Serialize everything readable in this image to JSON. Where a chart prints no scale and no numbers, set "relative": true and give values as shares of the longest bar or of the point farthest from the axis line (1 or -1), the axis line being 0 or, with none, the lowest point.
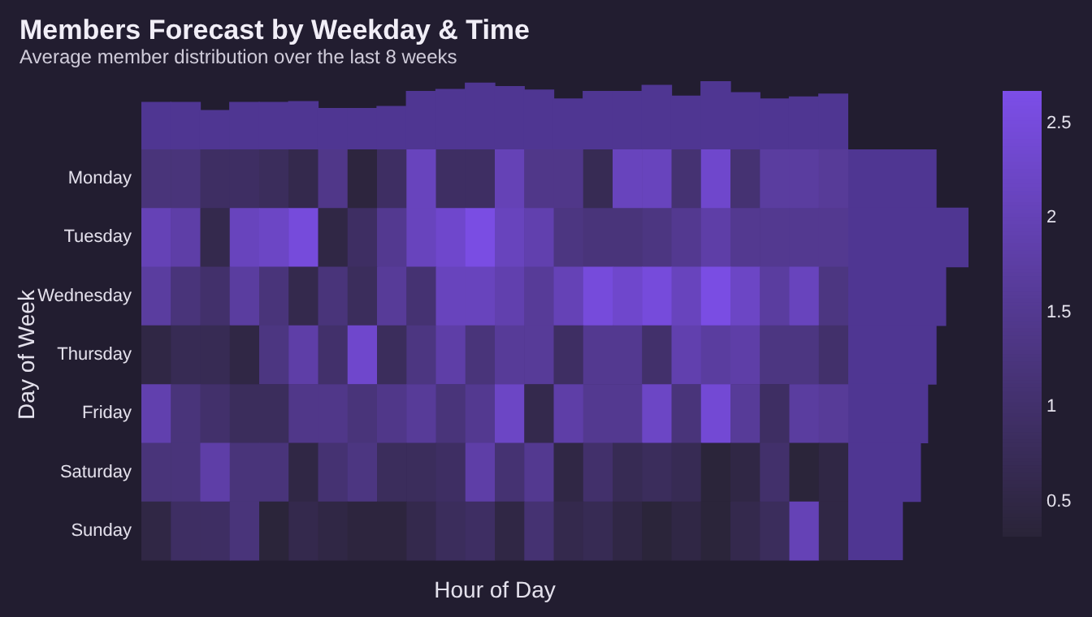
{
  "chart_data": [
    {
      "type": "heatmap",
      "xlabel": "Hour of Day",
      "ylabel": "Day of Week",
      "categories": [
        null,
        null,
        null,
        null,
        null,
        null,
        null,
        null,
        null,
        null,
        null,
        null,
        null,
        null,
        null,
        null,
        null,
        null,
        null,
        null,
        null,
        null,
        null,
        null
      ],
      "y_categories": [
        "Monday",
        "Tuesday",
        "Wednesday",
        "Thursday",
        "Friday",
        "Saturday",
        "Sunday"
      ],
      "cells": [
        [
          1.2,
          1.2,
          0.9,
          0.9,
          0.8,
          0.6,
          1.4,
          0.4,
          0.9,
          2.1,
          0.9,
          0.9,
          2.0,
          1.4,
          1.4,
          0.7,
          2.1,
          2.1,
          1.1,
          2.3,
          1.1,
          1.7,
          1.7,
          1.6
        ],
        [
          2.0,
          1.8,
          0.6,
          2.1,
          2.2,
          2.5,
          0.5,
          0.9,
          1.5,
          2.1,
          2.3,
          2.6,
          2.1,
          1.9,
          1.3,
          1.2,
          1.2,
          1.3,
          1.5,
          1.8,
          1.5,
          1.5,
          1.5,
          1.5
        ],
        [
          1.7,
          1.2,
          1.0,
          1.7,
          1.2,
          0.6,
          1.2,
          0.8,
          1.6,
          1.1,
          2.1,
          2.1,
          1.9,
          1.6,
          2.0,
          2.5,
          2.3,
          2.5,
          2.1,
          2.6,
          2.2,
          1.7,
          2.1,
          1.3
        ],
        [
          0.5,
          0.7,
          0.7,
          0.5,
          1.3,
          1.8,
          1.0,
          2.3,
          0.8,
          1.3,
          1.8,
          1.2,
          1.6,
          1.6,
          0.9,
          1.5,
          1.5,
          1.0,
          1.9,
          1.7,
          1.8,
          1.3,
          1.3,
          1.0
        ],
        [
          1.9,
          1.2,
          1.0,
          0.8,
          0.8,
          1.4,
          1.4,
          1.2,
          1.4,
          1.6,
          1.2,
          1.5,
          2.2,
          0.6,
          1.8,
          1.5,
          1.5,
          2.2,
          1.2,
          2.4,
          1.6,
          0.9,
          1.7,
          1.6
        ],
        [
          1.2,
          1.2,
          1.8,
          1.2,
          1.2,
          0.5,
          1.1,
          1.3,
          0.8,
          0.8,
          0.9,
          1.8,
          1.1,
          1.5,
          0.5,
          1.0,
          0.7,
          0.8,
          0.7,
          0.35,
          0.5,
          1.0,
          0.35,
          0.5
        ],
        [
          0.5,
          0.9,
          0.9,
          1.2,
          0.35,
          0.6,
          0.5,
          0.4,
          0.4,
          0.6,
          0.8,
          0.9,
          0.5,
          1.1,
          0.6,
          0.7,
          0.5,
          0.35,
          0.5,
          0.35,
          0.6,
          0.8,
          2.0,
          0.5
        ]
      ],
      "clim": [
        0.32,
        2.67
      ],
      "cticks": [
        0.5,
        1,
        1.5,
        2,
        2.5
      ]
    },
    {
      "type": "bar",
      "relative": true,
      "color": "#4f3692",
      "title": "Members Forecast by Weekday & Time",
      "subtitle": "Average member distribution over the last 8 weeks",
      "categories": [
        null,
        null,
        null,
        null,
        null,
        null,
        null,
        null,
        null,
        null,
        null,
        null,
        null,
        null,
        null,
        null,
        null,
        null,
        null,
        null,
        null,
        null,
        null,
        null
      ],
      "values": [
        0.69,
        0.69,
        0.57,
        0.69,
        0.69,
        0.7,
        0.6,
        0.6,
        0.63,
        0.85,
        0.88,
        0.97,
        0.92,
        0.87,
        0.74,
        0.85,
        0.85,
        0.94,
        0.78,
        1,
        0.83,
        0.74,
        0.77,
        0.81
      ]
    },
    {
      "type": "bar",
      "orientation": "horizontal",
      "relative": true,
      "color": "#4f3692",
      "categories": [
        null,
        null,
        null,
        null,
        null,
        null,
        null
      ],
      "values": [
        0.73,
        1,
        0.81,
        0.73,
        0.66,
        0.6,
        0.45
      ]
    }
  ]
}
